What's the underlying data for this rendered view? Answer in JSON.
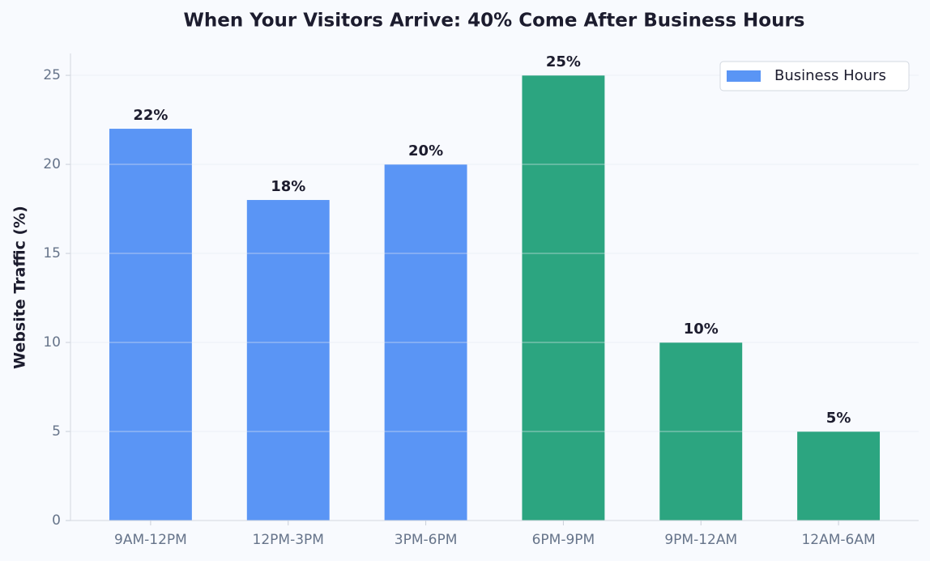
{
  "chart_data": {
    "type": "bar",
    "title": "When Your Visitors Arrive: 40% Come After Business Hours",
    "y_label": "Website Traffic (%)",
    "categories": [
      "9AM-12PM",
      "12PM-3PM",
      "3PM-6PM",
      "6PM-9PM",
      "9PM-12AM",
      "12AM-6AM"
    ],
    "values": [
      22,
      18,
      20,
      25,
      10,
      5
    ],
    "value_labels": [
      "22%",
      "18%",
      "20%",
      "25%",
      "10%",
      "5%"
    ],
    "colors": [
      "#5a95f5",
      "#5a95f5",
      "#5a95f5",
      "#2ca580",
      "#2ca580",
      "#2ca580"
    ],
    "legend": {
      "loc": "upper right",
      "entries": [
        {
          "name": "Business Hours",
          "color": "#5a95f5"
        }
      ]
    },
    "ylim": [
      0,
      26.23
    ],
    "yticks": [
      0,
      5,
      10,
      15,
      20,
      25
    ],
    "grid": true
  }
}
